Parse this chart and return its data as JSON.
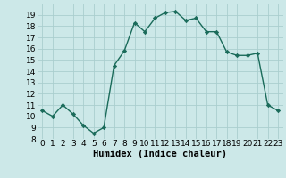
{
  "x": [
    0,
    1,
    2,
    3,
    4,
    5,
    6,
    7,
    8,
    9,
    10,
    11,
    12,
    13,
    14,
    15,
    16,
    17,
    18,
    19,
    20,
    21,
    22,
    23
  ],
  "y": [
    10.5,
    10.0,
    11.0,
    10.2,
    9.2,
    8.5,
    9.0,
    14.5,
    15.8,
    18.3,
    17.5,
    18.7,
    19.2,
    19.3,
    18.5,
    18.7,
    17.5,
    17.5,
    15.7,
    15.4,
    15.4,
    15.6,
    11.0,
    10.5
  ],
  "line_color": "#1a6b5a",
  "marker": "D",
  "marker_size": 2.2,
  "bg_color": "#cce8e8",
  "grid_color": "#aacece",
  "xlabel": "Humidex (Indice chaleur)",
  "xlim": [
    -0.5,
    23.5
  ],
  "ylim": [
    8,
    20
  ],
  "yticks": [
    8,
    9,
    10,
    11,
    12,
    13,
    14,
    15,
    16,
    17,
    18,
    19
  ],
  "xticks": [
    0,
    1,
    2,
    3,
    4,
    5,
    6,
    7,
    8,
    9,
    10,
    11,
    12,
    13,
    14,
    15,
    16,
    17,
    18,
    19,
    20,
    21,
    22,
    23
  ],
  "tick_fontsize": 6.5,
  "xlabel_fontsize": 7.5,
  "line_width": 1.0
}
